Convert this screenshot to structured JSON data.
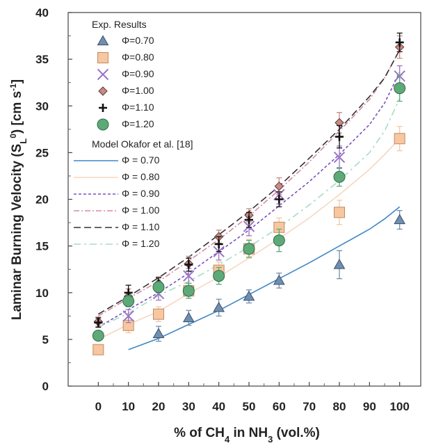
{
  "chart_data": {
    "type": "scatter",
    "xlabel": "% of CH",
    "xlabel_sub": "4",
    "xlabel_mid": " in NH",
    "xlabel_sub2": "3",
    "xlabel_end": " (vol.%)",
    "ylabel_main": "Laminar Burning Velocity (S",
    "ylabel_sub": "L",
    "ylabel_sup": "0",
    "ylabel_unit": ") [cm s",
    "ylabel_unit_sup": "-1",
    "ylabel_end": "]",
    "xlim": [
      -10,
      107
    ],
    "ylim": [
      0,
      40
    ],
    "x_ticks": [
      "0",
      "10",
      "20",
      "30",
      "40",
      "50",
      "60",
      "70",
      "80",
      "90",
      "100"
    ],
    "x_tick_values": [
      0,
      10,
      20,
      30,
      40,
      50,
      60,
      70,
      80,
      90,
      100
    ],
    "y_ticks": [
      "0",
      "5",
      "10",
      "15",
      "20",
      "25",
      "30",
      "35",
      "40"
    ],
    "y_tick_values": [
      0,
      5,
      10,
      15,
      20,
      25,
      30,
      35,
      40
    ],
    "legend_title_exp": "Exp. Results",
    "legend_title_model": "Model Okafor et al. [18]",
    "exp_series": [
      {
        "name": "Φ=0.70",
        "marker": "triangle",
        "color": "#6f8fb0",
        "points": [
          [
            20,
            5.6,
            0.8
          ],
          [
            30,
            7.3,
            0.8
          ],
          [
            40,
            8.4,
            0.9
          ],
          [
            50,
            9.6,
            0.7
          ],
          [
            60,
            11.3,
            0.8
          ],
          [
            80,
            13.0,
            1.5
          ],
          [
            100,
            17.8,
            1.0
          ]
        ]
      },
      {
        "name": "Φ=0.80",
        "marker": "square",
        "color": "#f6c7a0",
        "points": [
          [
            0,
            3.9,
            0.5
          ],
          [
            10,
            6.5,
            0.8
          ],
          [
            20,
            7.7,
            0.8
          ],
          [
            30,
            10.2,
            0.8
          ],
          [
            40,
            12.4,
            0.9
          ],
          [
            50,
            14.7,
            1.0
          ],
          [
            60,
            17.0,
            1.0
          ],
          [
            80,
            18.6,
            1.3
          ],
          [
            100,
            26.5,
            1.3
          ]
        ]
      },
      {
        "name": "Φ=0.90",
        "marker": "x",
        "color": "#9b74c5",
        "points": [
          [
            10,
            7.5,
            0.7
          ],
          [
            20,
            9.9,
            0.7
          ],
          [
            30,
            11.8,
            0.8
          ],
          [
            40,
            14.4,
            0.9
          ],
          [
            50,
            17.1,
            1.0
          ],
          [
            60,
            20.5,
            1.0
          ],
          [
            80,
            24.5,
            1.2
          ],
          [
            100,
            33.2,
            1.1
          ]
        ]
      },
      {
        "name": "Φ=1.00",
        "marker": "diamond",
        "color": "#c98a84",
        "points": [
          [
            0,
            6.9,
            0.5
          ],
          [
            10,
            9.6,
            0.8
          ],
          [
            20,
            11.0,
            0.7
          ],
          [
            30,
            13.1,
            0.8
          ],
          [
            40,
            16.0,
            0.7
          ],
          [
            50,
            18.3,
            0.7
          ],
          [
            60,
            21.4,
            0.9
          ],
          [
            80,
            28.2,
            1.1
          ],
          [
            100,
            36.3,
            1.2
          ]
        ]
      },
      {
        "name": "Φ=1.10",
        "marker": "plus",
        "color": "#111111",
        "points": [
          [
            0,
            6.8,
            0.5
          ],
          [
            10,
            10.0,
            0.8
          ],
          [
            20,
            10.9,
            0.7
          ],
          [
            30,
            13.0,
            0.7
          ],
          [
            40,
            15.2,
            0.8
          ],
          [
            50,
            17.8,
            0.8
          ],
          [
            60,
            20.0,
            0.8
          ],
          [
            80,
            26.7,
            1.2
          ],
          [
            100,
            36.8,
            1.0
          ]
        ]
      },
      {
        "name": "Φ=1.20",
        "marker": "circle",
        "color": "#5daa78",
        "points": [
          [
            0,
            5.4,
            0.5
          ],
          [
            10,
            9.1,
            0.6
          ],
          [
            20,
            10.6,
            0.6
          ],
          [
            30,
            10.2,
            0.8
          ],
          [
            40,
            11.8,
            0.9
          ],
          [
            50,
            14.7,
            0.9
          ],
          [
            60,
            15.6,
            1.2
          ],
          [
            80,
            22.4,
            1.0
          ],
          [
            100,
            31.9,
            1.4
          ]
        ]
      }
    ],
    "model_series": [
      {
        "name": "Φ = 0.70",
        "color": "#3e86c6",
        "dash": "",
        "x": [
          10,
          20,
          30,
          40,
          50,
          60,
          70,
          80,
          90,
          95,
          100
        ],
        "y": [
          3.9,
          5.1,
          6.6,
          8.1,
          9.8,
          11.5,
          13.2,
          15.0,
          16.8,
          17.9,
          19.2
        ]
      },
      {
        "name": "Φ = 0.80",
        "color": "#f6d7c2",
        "dash": "",
        "x": [
          0,
          10,
          20,
          30,
          40,
          50,
          60,
          70,
          80,
          90,
          95,
          100
        ],
        "y": [
          5.0,
          6.6,
          8.0,
          9.9,
          11.7,
          13.7,
          15.8,
          18.0,
          20.5,
          23.2,
          24.8,
          26.5
        ]
      },
      {
        "name": "Φ = 0.90",
        "color": "#7a4fc0",
        "dash": "4,3",
        "x": [
          0,
          10,
          20,
          30,
          40,
          50,
          60,
          70,
          80,
          90,
          95,
          100
        ],
        "y": [
          6.3,
          8.2,
          10.0,
          12.1,
          14.4,
          16.7,
          19.3,
          21.9,
          24.8,
          28.0,
          30.3,
          33.6
        ]
      },
      {
        "name": "Φ = 1.00",
        "color": "#d58aa6",
        "dash": "8,3,2,3",
        "x": [
          0,
          10,
          20,
          30,
          40,
          50,
          60,
          70,
          80,
          90,
          95,
          100
        ],
        "y": [
          7.5,
          9.4,
          11.2,
          13.4,
          15.7,
          18.2,
          21.0,
          24.0,
          27.3,
          30.7,
          33.0,
          36.0
        ]
      },
      {
        "name": "Φ = 1.10",
        "color": "#333333",
        "dash": "10,5",
        "x": [
          0,
          10,
          20,
          30,
          40,
          50,
          60,
          70,
          80,
          90,
          95,
          100
        ],
        "y": [
          7.7,
          9.6,
          11.6,
          13.8,
          16.2,
          18.7,
          21.4,
          24.4,
          27.5,
          31.0,
          33.0,
          36.0
        ]
      },
      {
        "name": "Φ = 1.20",
        "color": "#a7dcc4",
        "dash": "10,5,3,5",
        "x": [
          0,
          10,
          20,
          30,
          40,
          50,
          60,
          70,
          80,
          90,
          95,
          100
        ],
        "y": [
          6.3,
          7.8,
          9.7,
          11.2,
          13.0,
          14.9,
          17.0,
          19.4,
          22.0,
          25.0,
          27.3,
          30.8
        ]
      }
    ]
  }
}
